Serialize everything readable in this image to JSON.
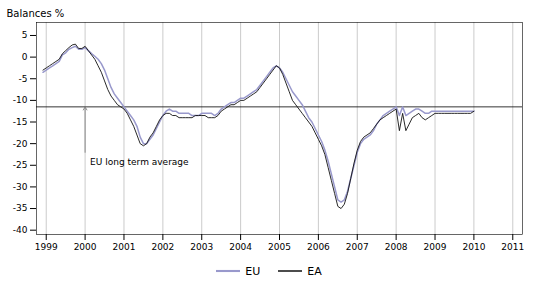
{
  "chart_data": {
    "type": "line",
    "ylabel": "Balances %",
    "x": [
      1998.917,
      1999.0003,
      1999.0837,
      1999.167,
      1999.2503,
      1999.3337,
      1999.417,
      1999.5003,
      1999.5837,
      1999.667,
      1999.7503,
      1999.8337,
      1999.917,
      2000.0003,
      2000.0837,
      2000.167,
      2000.2503,
      2000.3337,
      2000.417,
      2000.5003,
      2000.5837,
      2000.667,
      2000.7503,
      2000.8337,
      2000.917,
      2001.0003,
      2001.0837,
      2001.167,
      2001.2503,
      2001.3337,
      2001.417,
      2001.5003,
      2001.5837,
      2001.667,
      2001.7503,
      2001.8337,
      2001.917,
      2002.0003,
      2002.0837,
      2002.167,
      2002.2503,
      2002.3337,
      2002.417,
      2002.5003,
      2002.5837,
      2002.667,
      2002.7503,
      2002.8337,
      2002.917,
      2003.0003,
      2003.0837,
      2003.167,
      2003.2503,
      2003.3337,
      2003.417,
      2003.5003,
      2003.5837,
      2003.667,
      2003.7503,
      2003.8337,
      2003.917,
      2004.0003,
      2004.0837,
      2004.167,
      2004.2503,
      2004.3337,
      2004.417,
      2004.5003,
      2004.5837,
      2004.667,
      2004.7503,
      2004.8337,
      2004.917,
      2005.0003,
      2005.0837,
      2005.167,
      2005.2503,
      2005.3337,
      2005.417,
      2005.5003,
      2005.5837,
      2005.667,
      2005.7503,
      2005.8337,
      2005.917,
      2006.0003,
      2006.0837,
      2006.167,
      2006.2503,
      2006.3337,
      2006.417,
      2006.5003,
      2006.5837,
      2006.667,
      2006.7503,
      2006.8337,
      2006.917,
      2007.0003,
      2007.0837,
      2007.167,
      2007.2503,
      2007.3337,
      2007.417,
      2007.5003,
      2007.5837,
      2007.667,
      2007.7503,
      2007.8337,
      2007.917,
      2008.0003,
      2008.0837,
      2008.167,
      2008.2503,
      2008.3337,
      2008.417,
      2008.5003,
      2008.5837,
      2008.667,
      2008.7503,
      2008.8337,
      2008.917,
      2009.0003,
      2009.0837,
      2009.167,
      2009.2503,
      2009.3337,
      2009.417,
      2009.5003,
      2009.5837,
      2009.667,
      2009.7503,
      2009.8337,
      2009.917,
      2010.0003
    ],
    "series": [
      {
        "name": "EU",
        "color": "#9999cc",
        "values": [
          -3.5,
          -3.0,
          -2.5,
          -2.0,
          -1.5,
          -1.0,
          0.5,
          1.0,
          1.8,
          2.2,
          2.5,
          1.8,
          1.8,
          2.2,
          1.5,
          0.8,
          0.2,
          -0.5,
          -1.5,
          -3.0,
          -5.0,
          -7.0,
          -8.5,
          -9.5,
          -10.5,
          -11.5,
          -12.5,
          -13.5,
          -14.5,
          -16.0,
          -18.5,
          -20.0,
          -20.0,
          -19.0,
          -18.0,
          -16.5,
          -15.0,
          -13.5,
          -12.5,
          -12.0,
          -12.5,
          -12.5,
          -13.0,
          -13.0,
          -13.0,
          -13.0,
          -13.5,
          -13.5,
          -13.5,
          -13.0,
          -13.0,
          -13.0,
          -13.0,
          -13.5,
          -13.0,
          -12.0,
          -11.5,
          -11.0,
          -10.5,
          -10.5,
          -10.0,
          -9.5,
          -9.5,
          -9.0,
          -8.5,
          -8.0,
          -7.5,
          -6.5,
          -5.5,
          -4.5,
          -3.5,
          -2.5,
          -2.0,
          -2.5,
          -3.5,
          -5.0,
          -6.5,
          -8.0,
          -9.0,
          -10.0,
          -11.0,
          -12.5,
          -14.0,
          -15.0,
          -16.5,
          -18.0,
          -19.5,
          -21.5,
          -24.0,
          -27.0,
          -30.0,
          -33.0,
          -33.5,
          -33.0,
          -31.0,
          -28.0,
          -25.0,
          -22.0,
          -20.0,
          -19.0,
          -18.5,
          -18.0,
          -17.0,
          -15.5,
          -14.5,
          -13.5,
          -13.0,
          -12.5,
          -12.0,
          -11.5,
          -13.5,
          -11.5,
          -13.5,
          -13.0,
          -12.5,
          -12.0,
          -12.0,
          -12.5,
          -13.0,
          -13.0,
          -12.5,
          -12.5,
          -12.5,
          -12.5,
          -12.5,
          -12.5,
          -12.5,
          -12.5,
          -12.5,
          -12.5,
          -12.5,
          -12.5,
          -12.5,
          -12.5
        ]
      },
      {
        "name": "EA",
        "color": "#111111",
        "values": [
          -3.0,
          -2.5,
          -2.0,
          -1.5,
          -1.0,
          -0.5,
          0.8,
          1.5,
          2.2,
          2.8,
          3.0,
          2.0,
          2.0,
          2.5,
          1.5,
          0.5,
          -0.5,
          -2.0,
          -3.5,
          -5.5,
          -7.5,
          -9.0,
          -10.0,
          -11.0,
          -11.5,
          -12.0,
          -13.0,
          -14.5,
          -16.0,
          -18.0,
          -20.0,
          -20.5,
          -20.0,
          -18.5,
          -17.5,
          -16.0,
          -14.5,
          -13.5,
          -13.0,
          -13.0,
          -13.5,
          -13.5,
          -14.0,
          -14.0,
          -14.0,
          -14.0,
          -14.0,
          -13.5,
          -13.5,
          -13.5,
          -13.5,
          -14.0,
          -14.0,
          -14.0,
          -13.5,
          -12.5,
          -12.0,
          -11.5,
          -11.0,
          -11.0,
          -10.5,
          -10.0,
          -10.0,
          -9.5,
          -9.0,
          -8.5,
          -8.0,
          -7.0,
          -6.0,
          -5.0,
          -4.0,
          -3.0,
          -2.0,
          -2.5,
          -4.0,
          -6.0,
          -8.0,
          -10.0,
          -11.0,
          -12.0,
          -13.0,
          -14.0,
          -15.0,
          -16.0,
          -17.5,
          -19.0,
          -20.5,
          -22.5,
          -25.5,
          -28.5,
          -31.5,
          -34.5,
          -35.0,
          -34.0,
          -31.5,
          -28.0,
          -24.5,
          -21.5,
          -19.5,
          -18.5,
          -18.0,
          -17.5,
          -16.5,
          -15.5,
          -14.5,
          -14.0,
          -13.5,
          -13.0,
          -12.5,
          -12.0,
          -17.0,
          -13.0,
          -17.0,
          -15.5,
          -14.0,
          -13.5,
          -13.0,
          -14.0,
          -14.5,
          -14.0,
          -13.5,
          -13.0,
          -13.0,
          -13.0,
          -13.0,
          -13.0,
          -13.0,
          -13.0,
          -13.0,
          -13.0,
          -13.0,
          -13.0,
          -13.0,
          -12.5
        ]
      }
    ],
    "reference_line": -11.5,
    "annotations": [
      {
        "text": "EU long term average",
        "x": 2000.0,
        "y": -22.0
      }
    ],
    "xlim": [
      1998.75,
      2011.25
    ],
    "xticks": [
      1999,
      2000,
      2001,
      2002,
      2003,
      2004,
      2005,
      2006,
      2007,
      2008,
      2009,
      2010,
      2011
    ],
    "ylim": [
      -41,
      8
    ],
    "yticks": [
      5,
      0,
      -5,
      -10,
      -15,
      -20,
      -25,
      -30,
      -35,
      -40
    ],
    "grid": "x",
    "legend": "bottom"
  }
}
